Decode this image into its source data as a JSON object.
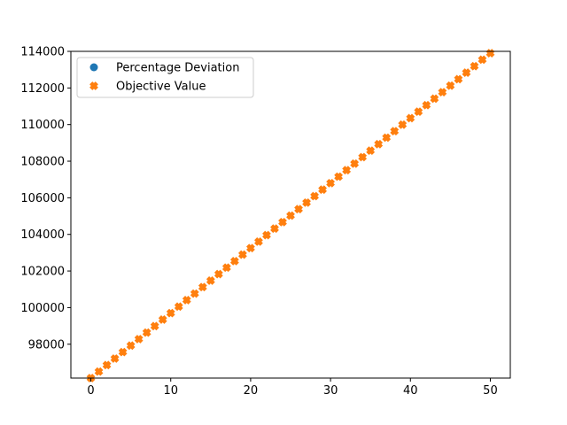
{
  "chart_data": {
    "type": "scatter",
    "xlim": [
      -2.5,
      52.5
    ],
    "ylim": [
      96150,
      114000
    ],
    "xticks": [
      0,
      10,
      20,
      30,
      40,
      50
    ],
    "yticks": [
      98000,
      100000,
      102000,
      104000,
      106000,
      108000,
      110000,
      112000,
      114000
    ],
    "legend": {
      "placement": "top-left",
      "entries": [
        "Percentage Deviation",
        "Objective Value"
      ]
    },
    "grid": false,
    "series": [
      {
        "name": "Percentage Deviation",
        "marker": "circle",
        "color": "#1f77b4",
        "x": [],
        "y": []
      },
      {
        "name": "Objective Value",
        "marker": "x",
        "color": "#ff7f0e",
        "x": [
          0,
          1,
          2,
          3,
          4,
          5,
          6,
          7,
          8,
          9,
          10,
          11,
          12,
          13,
          14,
          15,
          16,
          17,
          18,
          19,
          20,
          21,
          22,
          23,
          24,
          25,
          26,
          27,
          28,
          29,
          30,
          31,
          32,
          33,
          34,
          35,
          36,
          37,
          38,
          39,
          40,
          41,
          42,
          43,
          44,
          45,
          46,
          47,
          48,
          49,
          50
        ],
        "y": [
          96150,
          96505,
          96860,
          97215,
          97570,
          97925,
          98280,
          98635,
          98990,
          99345,
          99700,
          100055,
          100410,
          100765,
          101120,
          101475,
          101830,
          102185,
          102540,
          102895,
          103250,
          103605,
          103960,
          104315,
          104670,
          105025,
          105380,
          105735,
          106090,
          106445,
          106800,
          107155,
          107510,
          107865,
          108220,
          108575,
          108930,
          109285,
          109640,
          109995,
          110350,
          110705,
          111060,
          111415,
          111770,
          112125,
          112480,
          112835,
          113190,
          113545,
          113900
        ]
      }
    ]
  }
}
